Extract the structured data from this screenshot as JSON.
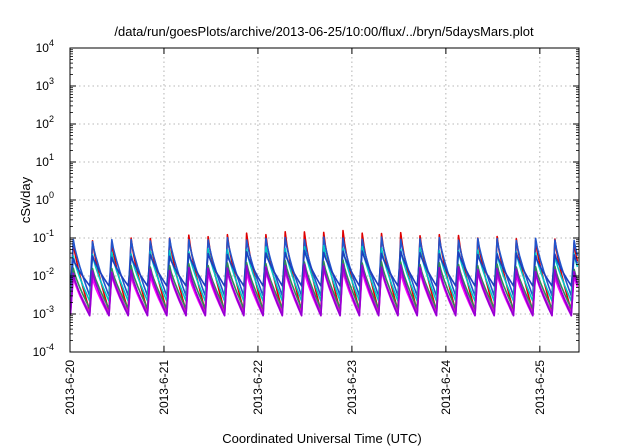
{
  "chart_data": {
    "type": "line",
    "title": "/data/run/goesPlots/archive/2013-06-25/10:00/flux/../bryn/5daysMars.plot",
    "xlabel": "Coordinated Universal Time (UTC)",
    "ylabel": "cSv/day",
    "yscale": "log",
    "ylim": [
      0.0001,
      10000
    ],
    "xlim": [
      "2013-06-20",
      "2013-06-25T10:00"
    ],
    "grid": true,
    "x_ticks": [
      "2013-6-20",
      "2013-6-21",
      "2013-6-22",
      "2013-6-23",
      "2013-6-24",
      "2013-6-25"
    ],
    "y_ticks": [
      {
        "base": "10",
        "exp": "4"
      },
      {
        "base": "10",
        "exp": "3"
      },
      {
        "base": "10",
        "exp": "2"
      },
      {
        "base": "10",
        "exp": "1"
      },
      {
        "base": "10",
        "exp": "0"
      },
      {
        "base": "10",
        "exp": "-1"
      },
      {
        "base": "10",
        "exp": "-2"
      },
      {
        "base": "10",
        "exp": "-3"
      },
      {
        "base": "10",
        "exp": "-4"
      }
    ],
    "periodic_pattern": {
      "period_days": 0.205,
      "first_peak": "2013-06-20T00:50"
    },
    "series": [
      {
        "color": "#e00000",
        "peak_start": 0.075,
        "peak_mid": 0.15,
        "peak_end": 0.08,
        "trough": 0.0012
      },
      {
        "color": "#2255cc",
        "peak_start": 0.085,
        "peak_mid": 0.1,
        "peak_end": 0.09,
        "trough": 0.003
      },
      {
        "color": "#00c8c8",
        "peak_start": 0.035,
        "peak_mid": 0.06,
        "peak_end": 0.035,
        "trough": 0.0022
      },
      {
        "color": "#1d3fbf",
        "peak_start": 0.03,
        "peak_mid": 0.045,
        "peak_end": 0.035,
        "trough": 0.0055
      },
      {
        "color": "#2e8b57",
        "peak_start": 0.015,
        "peak_mid": 0.025,
        "peak_end": 0.016,
        "trough": 0.0014
      },
      {
        "color": "#ff00ff",
        "peak_start": 0.009,
        "peak_mid": 0.015,
        "peak_end": 0.01,
        "trough": 0.0009
      },
      {
        "color": "#c71fc7",
        "peak_start": 0.011,
        "peak_mid": 0.018,
        "peak_end": 0.012,
        "trough": 0.0011
      },
      {
        "color": "#9400d3",
        "peak_start": 0.012,
        "peak_mid": 0.02,
        "peak_end": 0.013,
        "trough": 0.0009
      }
    ]
  }
}
